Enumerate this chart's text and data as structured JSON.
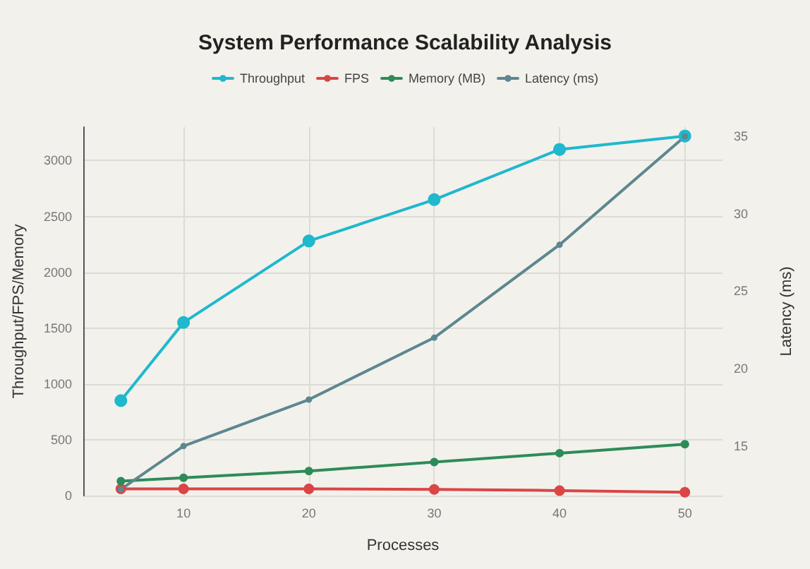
{
  "chart_data": {
    "type": "line",
    "title": "System Performance Scalability Analysis",
    "xlabel": "Processes",
    "ylabel": "Throughput/FPS/Memory",
    "y2label": "Latency (ms)",
    "x": [
      5,
      10,
      20,
      30,
      40,
      50
    ],
    "series": [
      {
        "name": "Throughput",
        "color": "#1fb8cd",
        "values": [
          850,
          1550,
          2280,
          2650,
          3100,
          3220
        ]
      },
      {
        "name": "FPS",
        "color": "#db4545",
        "values": [
          60,
          60,
          60,
          55,
          45,
          30
        ]
      },
      {
        "name": "Memory (MB)",
        "color": "#2e8b57",
        "values": [
          130,
          160,
          220,
          300,
          380,
          460
        ]
      },
      {
        "name": "Latency (ms)",
        "color": "#5d878f",
        "axis": "y2",
        "values": [
          12.2,
          15,
          18,
          22,
          28,
          35
        ]
      }
    ],
    "xlim": [
      2,
      53
    ],
    "xticks": [
      10,
      20,
      30,
      40,
      50
    ],
    "ylim": [
      0,
      3300
    ],
    "yticks": [
      0,
      500,
      1000,
      1500,
      2000,
      2500,
      3000
    ],
    "y2lim": [
      11.8,
      35.6
    ],
    "y2ticks": [
      15,
      20,
      25,
      30,
      35
    ],
    "grid": true,
    "legend": "top",
    "marker": "circle",
    "line_style": "solid"
  }
}
